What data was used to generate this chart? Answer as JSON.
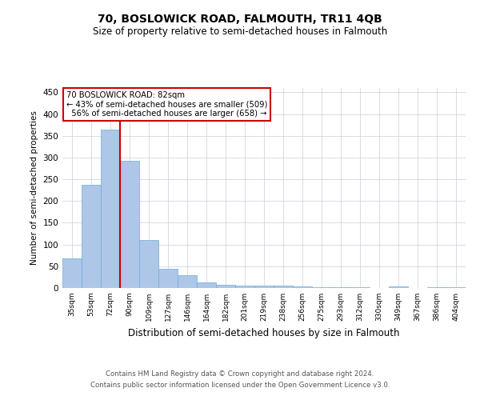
{
  "title": "70, BOSLOWICK ROAD, FALMOUTH, TR11 4QB",
  "subtitle": "Size of property relative to semi-detached houses in Falmouth",
  "xlabel": "Distribution of semi-detached houses by size in Falmouth",
  "ylabel": "Number of semi-detached properties",
  "footer_line1": "Contains HM Land Registry data © Crown copyright and database right 2024.",
  "footer_line2": "Contains public sector information licensed under the Open Government Licence v3.0.",
  "categories": [
    "35sqm",
    "53sqm",
    "72sqm",
    "90sqm",
    "109sqm",
    "127sqm",
    "146sqm",
    "164sqm",
    "182sqm",
    "201sqm",
    "219sqm",
    "238sqm",
    "256sqm",
    "275sqm",
    "293sqm",
    "312sqm",
    "330sqm",
    "349sqm",
    "367sqm",
    "386sqm",
    "404sqm"
  ],
  "values": [
    68,
    237,
    365,
    292,
    110,
    45,
    30,
    12,
    7,
    6,
    5,
    5,
    3,
    2,
    1,
    1,
    0,
    3,
    0,
    2,
    1
  ],
  "bar_color": "#aec6e8",
  "bar_edge_color": "#6aafd6",
  "red_line_index": 2,
  "property_label": "70 BOSLOWICK ROAD: 82sqm",
  "pct_smaller": "43% of semi-detached houses are smaller (509)",
  "pct_larger": "56% of semi-detached houses are larger (658)",
  "annotation_box_color": "#ffffff",
  "annotation_box_edge_color": "#cc0000",
  "red_line_color": "#cc0000",
  "ylim": [
    0,
    460
  ],
  "yticks": [
    0,
    50,
    100,
    150,
    200,
    250,
    300,
    350,
    400,
    450
  ],
  "background_color": "#ffffff",
  "grid_color": "#c8d0dc"
}
